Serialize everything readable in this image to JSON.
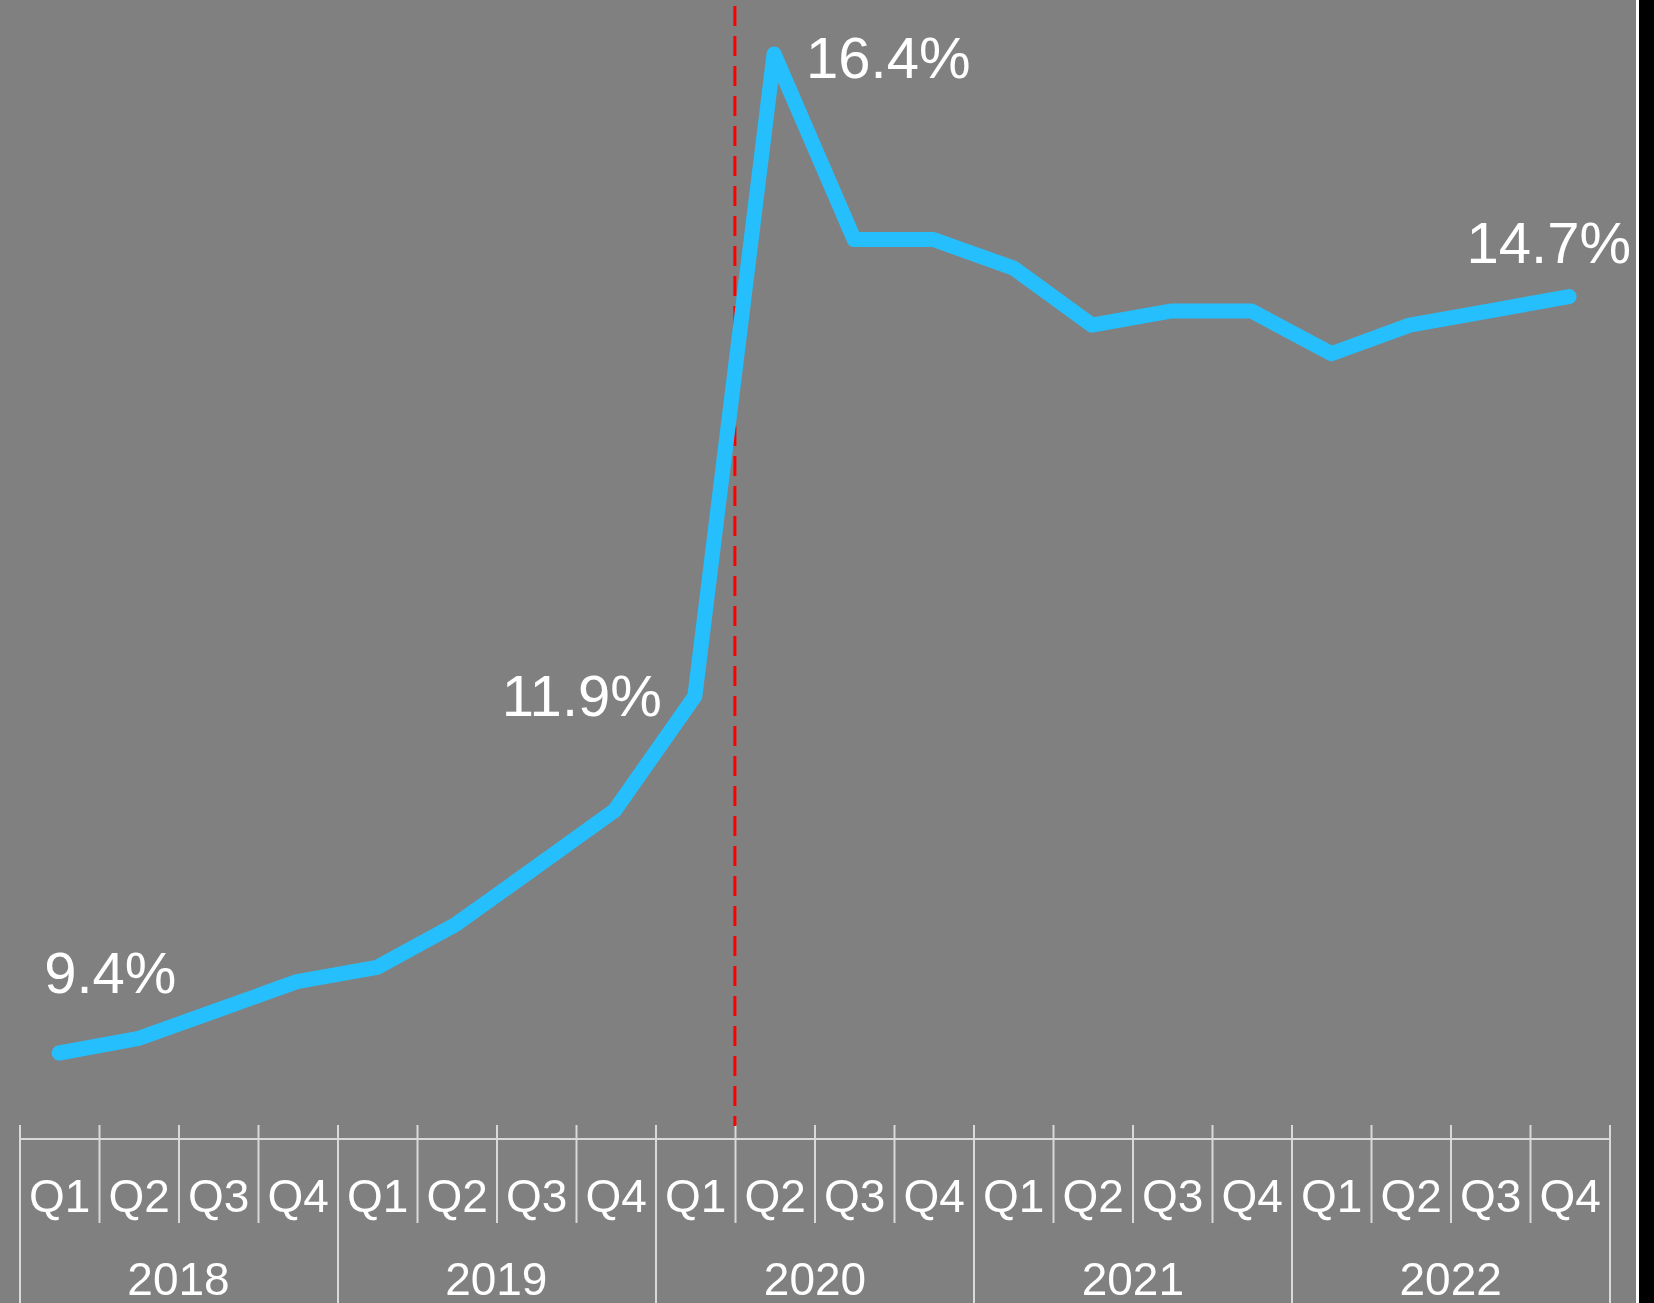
{
  "chart_data": {
    "type": "line",
    "x": [
      "2018-02-15",
      "2018-05-16",
      "2018-08-16",
      "2018-11-15",
      "2019-02-15",
      "2019-05-16",
      "2019-08-16",
      "2019-11-15",
      "2020-02-15",
      "2020-05-16",
      "2020-08-16",
      "2020-11-15",
      "2021-02-15",
      "2021-05-16",
      "2021-08-16",
      "2021-11-15",
      "2022-02-15",
      "2022-05-16",
      "2022-08-16",
      "2022-11-15"
    ],
    "xlim": [
      "2018-01-01",
      "2023-01-01"
    ],
    "xticks": [
      {
        "value": "2018-07-02",
        "label": "2018"
      },
      {
        "value": "2019-07-02",
        "label": "2019"
      },
      {
        "value": "2020-07-02",
        "label": "2020"
      },
      {
        "value": "2021-07-02",
        "label": "2021"
      },
      {
        "value": "2022-07-02",
        "label": "2022"
      }
    ],
    "series": [
      {
        "color": "#25bffd",
        "values": [
          9.4,
          9.5,
          9.7,
          9.9,
          10.0,
          10.3,
          10.7,
          11.1,
          11.9,
          16.4,
          15.1,
          15.1,
          14.9,
          14.5,
          14.6,
          14.6,
          14.3,
          14.5,
          14.6,
          14.7
        ],
        "value_labels": [
          "9.4%",
          null,
          null,
          null,
          null,
          null,
          null,
          null,
          "11.9%",
          "16.4%",
          null,
          null,
          null,
          null,
          null,
          null,
          null,
          null,
          null,
          "14.7%"
        ]
      }
    ],
    "annotations": [
      "Q1",
      "Q2",
      "Q3",
      "Q4",
      "Q1",
      "Q2",
      "Q3",
      "Q4",
      "Q1",
      "Q2",
      "Q3",
      "Q4",
      "Q1",
      "Q2",
      "Q3",
      "Q4",
      "Q1",
      "Q2",
      "Q3",
      "Q4"
    ],
    "ref_lines": [
      {
        "axis": "x",
        "value": "2020-04-01",
        "color": "#ff0000",
        "line_style": "dashed"
      }
    ]
  }
}
